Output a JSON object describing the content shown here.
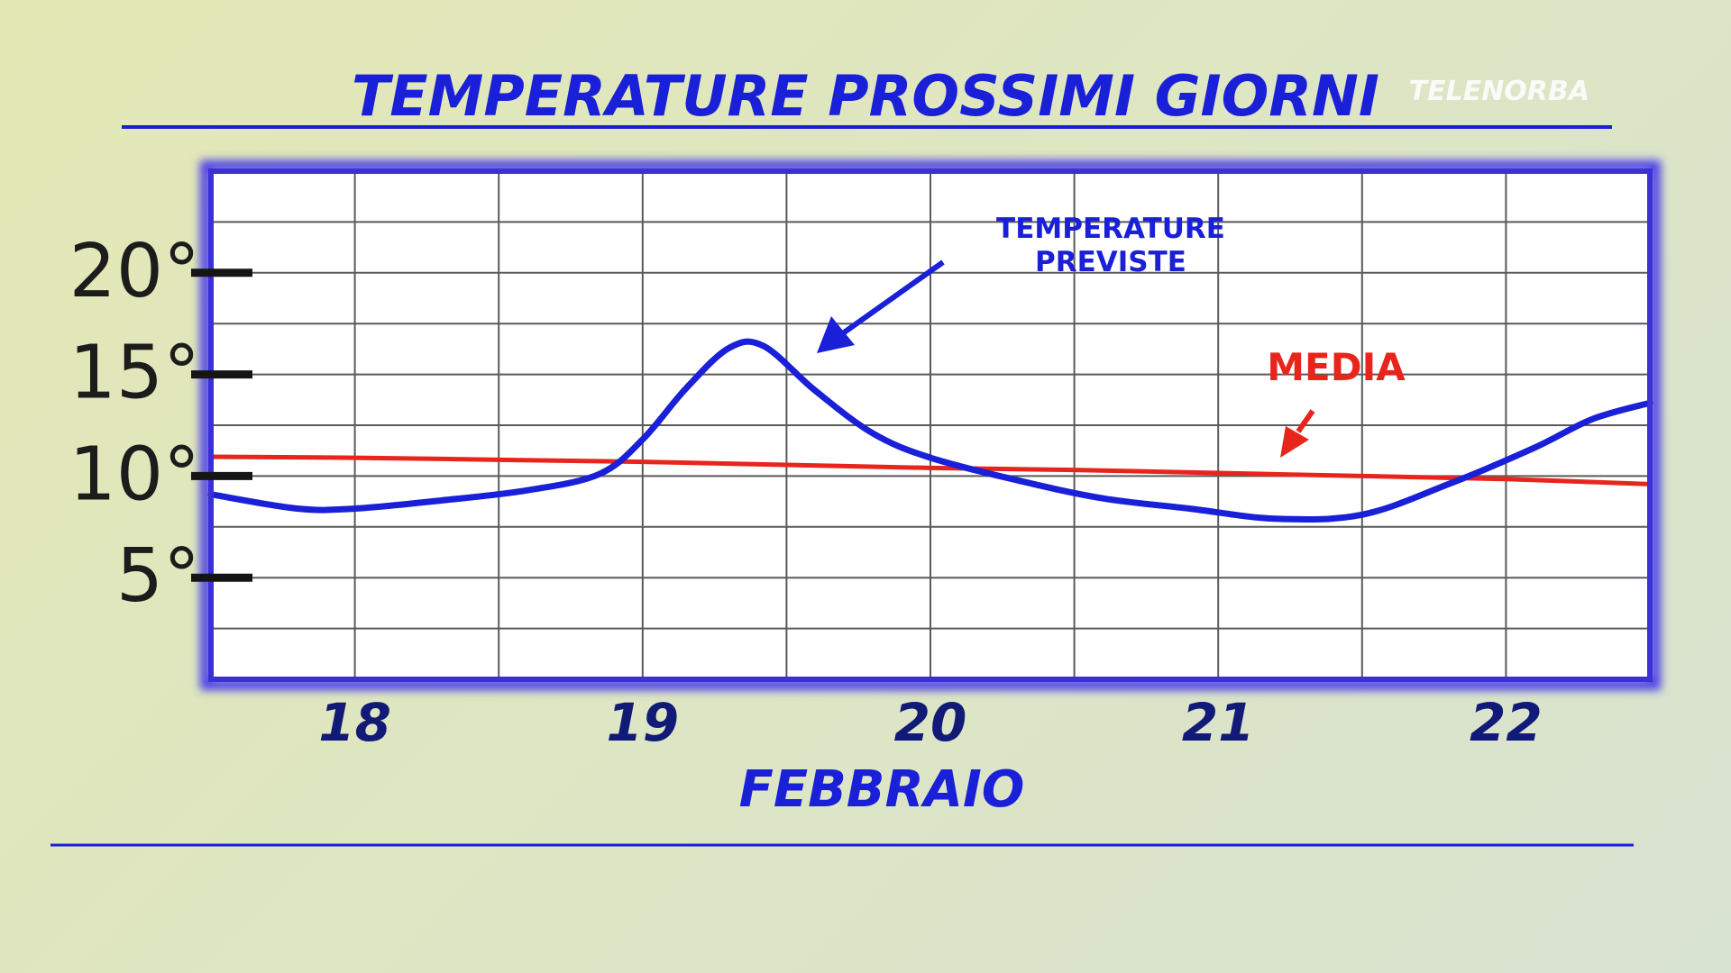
{
  "header": {
    "title": "TEMPERATURE PROSSIMI GIORNI",
    "logo": "TELENORBA"
  },
  "chart_data": {
    "type": "line",
    "xlabel": "FEBBRAIO",
    "ylabel": "",
    "x_ticks": [
      "18",
      "19",
      "20",
      "21",
      "22"
    ],
    "y_ticks": [
      "20°",
      "15°",
      "10°",
      "5°"
    ],
    "y_tick_values": [
      20,
      15,
      10,
      5
    ],
    "xlim": [
      17.5,
      22.5
    ],
    "ylim": [
      0,
      25
    ],
    "grid": true,
    "colors": {
      "forecast": "#1a1fd8",
      "average": "#e8251c",
      "frame": "#3b2fd6"
    },
    "series": [
      {
        "name": "TEMPERATURE PREVISTE",
        "color": "#1a1fd8",
        "x": [
          17.5,
          17.8,
          18.0,
          18.3,
          18.6,
          18.85,
          19.0,
          19.15,
          19.3,
          19.42,
          19.6,
          19.8,
          20.0,
          20.3,
          20.6,
          20.9,
          21.2,
          21.5,
          21.8,
          22.1,
          22.3,
          22.5
        ],
        "y": [
          9.1,
          8.4,
          8.4,
          8.8,
          9.3,
          10.1,
          11.8,
          14.3,
          16.3,
          16.4,
          14.2,
          12.1,
          10.9,
          9.8,
          8.9,
          8.4,
          7.9,
          8.1,
          9.6,
          11.4,
          12.8,
          13.6
        ]
      },
      {
        "name": "MEDIA",
        "color": "#e8251c",
        "x": [
          17.5,
          18.0,
          18.5,
          19.0,
          19.5,
          20.0,
          20.5,
          21.0,
          21.5,
          22.0,
          22.5
        ],
        "y": [
          10.95,
          10.9,
          10.8,
          10.7,
          10.55,
          10.4,
          10.3,
          10.15,
          10.0,
          9.85,
          9.6
        ]
      }
    ],
    "annotations": [
      {
        "text": [
          "TEMPERATURE",
          "PREVISTE"
        ],
        "target": "forecast",
        "color": "#1a1fd8"
      },
      {
        "text": [
          "MEDIA"
        ],
        "target": "average",
        "color": "#e8251c"
      }
    ]
  }
}
